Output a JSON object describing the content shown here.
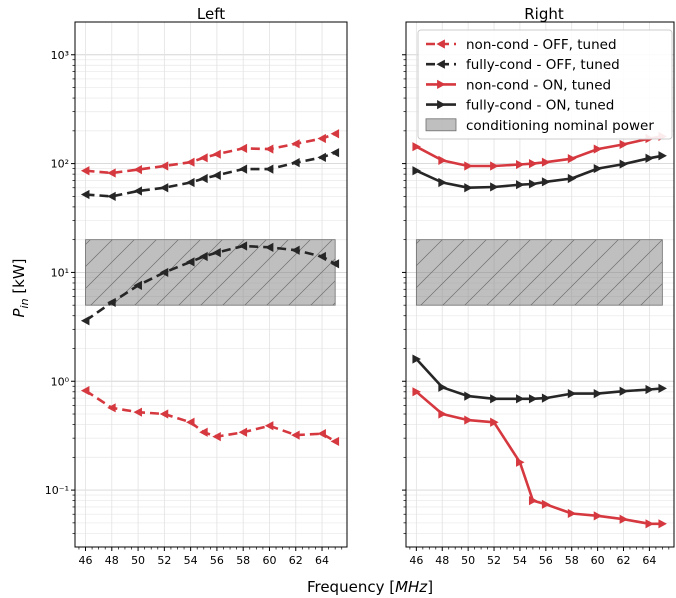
{
  "chart_data": {
    "type": "line",
    "xlabel": "Frequency [MHz]",
    "ylabel": "P_in [kW]",
    "yscale": "log",
    "ylim": [
      0.03,
      2000
    ],
    "xlim": [
      45.2,
      65.9
    ],
    "grid": true,
    "legend_position": "top-right",
    "x_ticks": [
      46,
      48,
      50,
      52,
      54,
      56,
      58,
      60,
      62,
      64
    ],
    "y_ticks": [
      {
        "value": 0.1,
        "label": "10⁻¹"
      },
      {
        "value": 1,
        "label": "10⁰"
      },
      {
        "value": 10,
        "label": "10¹"
      },
      {
        "value": 100,
        "label": "10²"
      },
      {
        "value": 1000,
        "label": "10³"
      }
    ],
    "band": {
      "name": "conditioning nominal power",
      "low": 5,
      "high": 20,
      "color": "#808080"
    },
    "colors": {
      "red": "#d6383f",
      "black": "#262626"
    },
    "panels": [
      {
        "title": "Left",
        "series": [
          {
            "name": "non-cond - OFF, tuned",
            "color": "#d6383f",
            "dash": true,
            "marker": "left",
            "x": [
              46,
              48,
              50,
              52,
              54,
              55,
              56,
              58,
              60,
              62,
              64,
              65
            ],
            "y": [
              0.82,
              0.57,
              0.52,
              0.5,
              0.42,
              0.34,
              0.31,
              0.34,
              0.39,
              0.32,
              0.33,
              0.28
            ]
          },
          {
            "name": "fully-cond - OFF, tuned",
            "color": "#262626",
            "dash": true,
            "marker": "left",
            "x": [
              46,
              48,
              50,
              52,
              54,
              55,
              56,
              58,
              60,
              62,
              64,
              65
            ],
            "y": [
              3.6,
              5.3,
              7.6,
              10,
              12.5,
              14,
              15.2,
              17.5,
              17,
              16,
              14,
              12
            ]
          },
          {
            "name": "non-cond - OFF, tuned",
            "color": "#d6383f",
            "dash": true,
            "marker": "left",
            "x": [
              46,
              48,
              50,
              52,
              54,
              55,
              56,
              58,
              60,
              62,
              64,
              65
            ],
            "y": [
              86,
              82,
              88,
              95,
              103,
              113,
              122,
              138,
              136,
              152,
              170,
              188
            ]
          },
          {
            "name": "fully-cond - OFF, tuned",
            "color": "#262626",
            "dash": true,
            "marker": "left",
            "x": [
              46,
              48,
              50,
              52,
              54,
              55,
              56,
              58,
              60,
              62,
              64,
              65
            ],
            "y": [
              52,
              50,
              56,
              60,
              67,
              73,
              78,
              89,
              89,
              102,
              114,
              126
            ]
          }
        ]
      },
      {
        "title": "Right",
        "series": [
          {
            "name": "non-cond - ON, tuned",
            "color": "#d6383f",
            "dash": false,
            "marker": "right",
            "x": [
              46,
              48,
              50,
              52,
              54,
              55,
              56,
              58,
              60,
              62,
              64,
              65
            ],
            "y": [
              0.8,
              0.5,
              0.44,
              0.42,
              0.18,
              0.08,
              0.074,
              0.061,
              0.058,
              0.054,
              0.049,
              0.049
            ]
          },
          {
            "name": "fully-cond - ON, tuned",
            "color": "#262626",
            "dash": false,
            "marker": "right",
            "x": [
              46,
              48,
              50,
              52,
              54,
              55,
              56,
              58,
              60,
              62,
              64,
              65
            ],
            "y": [
              1.6,
              0.88,
              0.73,
              0.69,
              0.69,
              0.69,
              0.7,
              0.77,
              0.77,
              0.81,
              0.84,
              0.86
            ]
          },
          {
            "name": "non-cond - ON, tuned",
            "color": "#d6383f",
            "dash": false,
            "marker": "right",
            "x": [
              46,
              48,
              50,
              52,
              54,
              55,
              56,
              58,
              60,
              62,
              64,
              65
            ],
            "y": [
              143,
              107,
              95,
              95,
              98,
              100,
              103,
              111,
              136,
              150,
              170,
              178
            ]
          },
          {
            "name": "fully-cond - ON, tuned",
            "color": "#262626",
            "dash": false,
            "marker": "right",
            "x": [
              46,
              48,
              50,
              52,
              54,
              55,
              56,
              58,
              60,
              62,
              64,
              65
            ],
            "y": [
              86,
              67,
              60,
              61,
              64,
              65,
              68,
              73,
              90,
              99,
              112,
              118
            ]
          }
        ]
      }
    ],
    "legend": [
      {
        "label": "non-cond - OFF, tuned",
        "color": "#d6383f",
        "dash": true,
        "marker": "left"
      },
      {
        "label": "fully-cond - OFF, tuned",
        "color": "#262626",
        "dash": true,
        "marker": "left"
      },
      {
        "label": "non-cond - ON, tuned",
        "color": "#d6383f",
        "dash": false,
        "marker": "right"
      },
      {
        "label": "fully-cond - ON, tuned",
        "color": "#262626",
        "dash": false,
        "marker": "right"
      },
      {
        "label": "conditioning nominal power",
        "color": "#808080",
        "patch": true
      }
    ]
  }
}
